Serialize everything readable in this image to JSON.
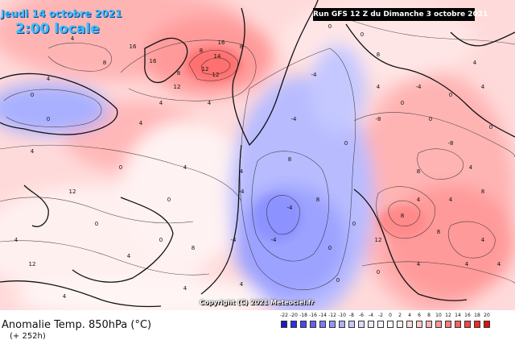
{
  "header": {
    "date_label": "Jeudi 14 octobre 2021",
    "time_label": "2:00 locale",
    "run_label": "Run GFS 12 Z du Dimanche 3 octobre 2021"
  },
  "map": {
    "copyright": "Copyright (C) 2021 Meteociel.fr",
    "isoline_labels": [
      "16",
      "14",
      "12",
      "16",
      "16",
      "12",
      "12",
      "8",
      "8",
      "8",
      "8",
      "4",
      "4",
      "4",
      "4",
      "4",
      "4",
      "4",
      "4",
      "0",
      "0",
      "0",
      "0",
      "0",
      "0",
      "-4",
      "-4",
      "-4",
      "-4",
      "-4",
      "-8",
      "-8",
      "4",
      "8",
      "8",
      "8",
      "12",
      "4",
      "4",
      "4",
      "4",
      "0",
      "-4",
      "4",
      "8",
      "12",
      "12",
      "4",
      "4",
      "4",
      "4",
      "0",
      "0",
      "0",
      "0",
      "0",
      "-4",
      "4",
      "8",
      "8",
      "0",
      "0",
      "0",
      "4",
      "4",
      "8",
      "4",
      "4",
      "8",
      "0",
      "0"
    ]
  },
  "footer": {
    "title": "Anomalie Temp. 850hPa (°C)",
    "lead": "(+ 252h)"
  },
  "legend": {
    "labels": [
      "-22",
      "-20",
      "-18",
      "-16",
      "-14",
      "-12",
      "-10",
      "-8",
      "-6",
      "-4",
      "-2",
      "0",
      "2",
      "4",
      "6",
      "8",
      "10",
      "12",
      "14",
      "16",
      "18",
      "20"
    ],
    "colors": [
      "#1a1ac8",
      "#2e2ee6",
      "#4848f0",
      "#6262f2",
      "#7c7cf4",
      "#9696f6",
      "#b0b0f8",
      "#c8c8fa",
      "#dcdcfc",
      "#ececfe",
      "#f8f8ff",
      "#ffffff",
      "#fff0f0",
      "#ffdcdc",
      "#ffc8c8",
      "#ffb0b0",
      "#ff9696",
      "#ff7c7c",
      "#ff6060",
      "#f84444",
      "#f02a2a",
      "#e01010"
    ]
  }
}
